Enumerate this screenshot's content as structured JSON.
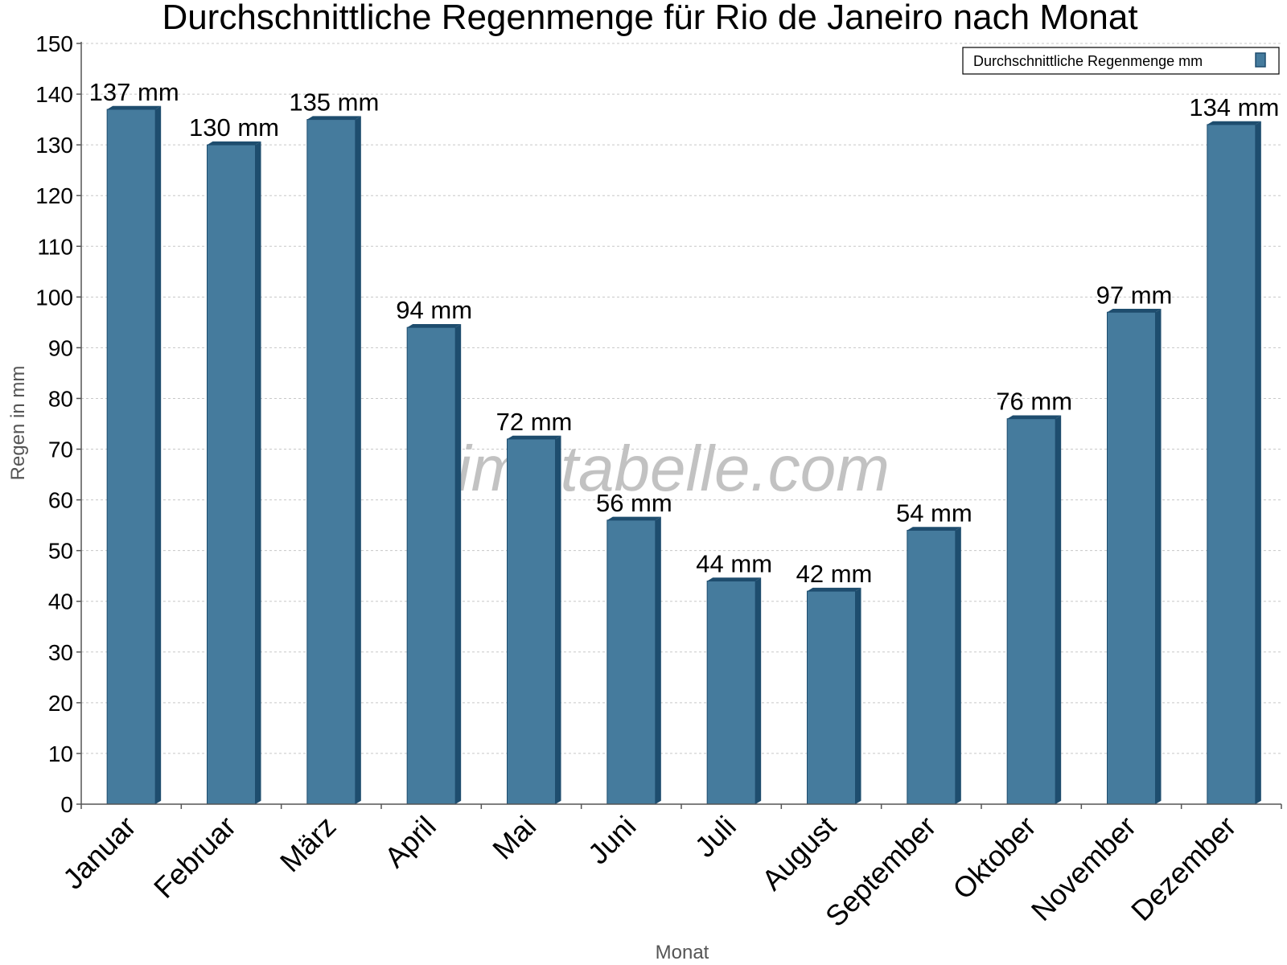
{
  "chart_data": {
    "type": "bar",
    "title": "Durchschnittliche Regenmenge für Rio de Janeiro nach Monat",
    "xlabel": "Monat",
    "ylabel": "Regen in mm",
    "categories": [
      "Januar",
      "Februar",
      "März",
      "April",
      "Mai",
      "Juni",
      "Juli",
      "August",
      "September",
      "Oktober",
      "November",
      "Dezember"
    ],
    "series": [
      {
        "name": "Durchschnittliche Regenmenge mm",
        "values": [
          137,
          130,
          135,
          94,
          72,
          56,
          44,
          42,
          54,
          76,
          97,
          134
        ],
        "labels": [
          "137 mm",
          "130 mm",
          "135 mm",
          "94 mm",
          "72 mm",
          "56 mm",
          "44 mm",
          "42 mm",
          "54 mm",
          "76 mm",
          "97 mm",
          "134 mm"
        ]
      }
    ],
    "ylim": [
      0,
      150
    ],
    "yticks": [
      0,
      10,
      20,
      30,
      40,
      50,
      60,
      70,
      80,
      90,
      100,
      110,
      120,
      130,
      140,
      150
    ],
    "grid": true,
    "legend_position": "top-right",
    "watermark": "klimatabelle.com",
    "colors": {
      "bar": "#457b9d",
      "bar_side": "#1e4d6e",
      "grid": "#c8c8c8",
      "axis": "#555555"
    }
  }
}
